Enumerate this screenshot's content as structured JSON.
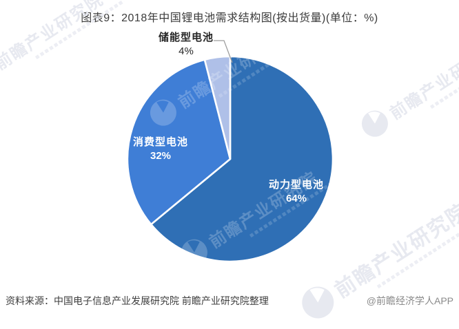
{
  "title": "图表9：2018年中国锂电池需求结构图(按出货量)(单位：%)",
  "chart_data": {
    "type": "pie",
    "title": "2018年中国锂电池需求结构图(按出货量)",
    "unit": "%",
    "start_angle_deg": -90,
    "direction": "clockwise",
    "legend_position": "none",
    "series": [
      {
        "name": "动力型电池",
        "value": 64,
        "pct_label": "64%",
        "color": "#2F6FB5"
      },
      {
        "name": "消费型电池",
        "value": 32,
        "pct_label": "32%",
        "color": "#3F7ED6"
      },
      {
        "name": "储能型电池",
        "value": 4,
        "pct_label": "4%",
        "color": "#AFC0E8"
      }
    ]
  },
  "footer": {
    "source": "资料来源：中国电子信息产业发展研究院 前瞻产业研究院整理",
    "credit": "@前瞻经济学人APP"
  },
  "watermark": {
    "text": "前瞻产业研究院"
  }
}
